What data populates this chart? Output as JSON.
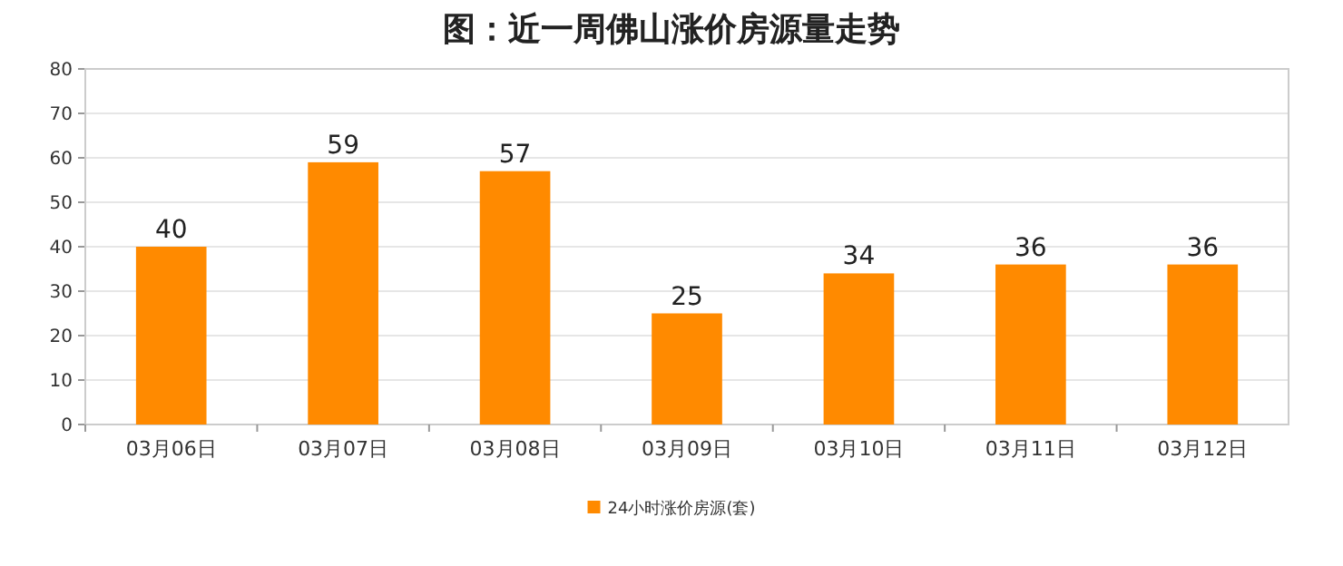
{
  "chart_data": {
    "type": "bar",
    "title": "图：近一周佛山涨价房源量走势",
    "categories": [
      "03月06日",
      "03月07日",
      "03月08日",
      "03月09日",
      "03月10日",
      "03月11日",
      "03月12日"
    ],
    "series": [
      {
        "name": "24小时涨价房源(套)",
        "color": "#ff8a00",
        "values": [
          40,
          59,
          57,
          25,
          34,
          36,
          36
        ]
      }
    ],
    "ylim": [
      0,
      80
    ],
    "yticks": [
      0,
      10,
      20,
      30,
      40,
      50,
      60,
      70,
      80
    ],
    "grid": "y",
    "legend": "bottom",
    "data_labels": true
  }
}
